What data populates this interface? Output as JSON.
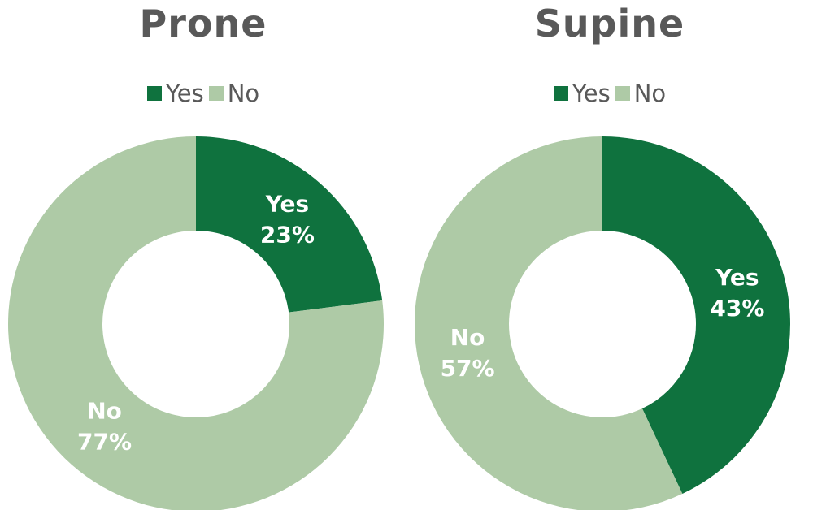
{
  "chart_data": [
    {
      "type": "pie",
      "title": "Prone",
      "categories": [
        "Yes",
        "No"
      ],
      "values": [
        23,
        77
      ],
      "data_labels": [
        {
          "category": "Yes",
          "value": "23%"
        },
        {
          "category": "No",
          "value": "77%"
        }
      ],
      "colors": {
        "Yes": "#0f723e",
        "No": "#aecaa6"
      },
      "hole": true,
      "legend_placement": "top"
    },
    {
      "type": "pie",
      "title": "Supine",
      "categories": [
        "Yes",
        "No"
      ],
      "values": [
        43,
        57
      ],
      "data_labels": [
        {
          "category": "Yes",
          "value": "43%"
        },
        {
          "category": "No",
          "value": "57%"
        }
      ],
      "colors": {
        "Yes": "#0f723e",
        "No": "#aecaa6"
      },
      "hole": true,
      "legend_placement": "top"
    }
  ]
}
